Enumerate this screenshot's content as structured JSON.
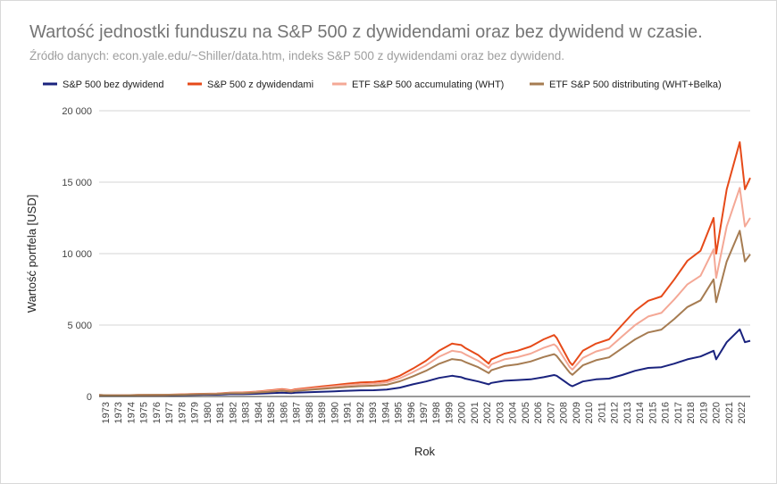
{
  "chart_data": {
    "type": "line",
    "title": "Wartość jednostki funduszu na S&P 500 z dywidendami oraz bez dywidend w czasie.",
    "subtitle": "Źródło danych: econ.yale.edu/~Shiller/data.htm, indeks S&P 500 z dywidendami oraz bez dywidend.",
    "xlabel": "Rok",
    "ylabel": "Wartość portfela [USD]",
    "ylim": [
      0,
      20000
    ],
    "yticks": [
      0,
      5000,
      10000,
      15000,
      20000
    ],
    "ytick_labels": [
      "0",
      "5 000",
      "10 000",
      "15 000",
      "20 000"
    ],
    "xlim": [
      1973.0,
      2022.8
    ],
    "x_tick_labels": [
      "1973",
      "1973",
      "1974",
      "1975",
      "1976",
      "1977",
      "1978",
      "1979",
      "1980",
      "1981",
      "1982",
      "1983",
      "1984",
      "1985",
      "1986",
      "1987",
      "1988",
      "1989",
      "1990",
      "1991",
      "1992",
      "1993",
      "1994",
      "1995",
      "1996",
      "1997",
      "1998",
      "1999",
      "2000",
      "2001",
      "2002",
      "2003",
      "2004",
      "2005",
      "2006",
      "2007",
      "2008",
      "2009",
      "2010",
      "2011",
      "2012",
      "2013",
      "2014",
      "2015",
      "2016",
      "2017",
      "2018",
      "2019",
      "2020",
      "2021",
      "2022"
    ],
    "grid": true,
    "legend_position": "top",
    "x": [
      1973,
      1974,
      1975,
      1976,
      1977,
      1978,
      1979,
      1980,
      1981,
      1982,
      1983,
      1984,
      1985,
      1986,
      1987,
      1987.7,
      1988,
      1989,
      1990,
      1991,
      1992,
      1993,
      1994,
      1995,
      1996,
      1997,
      1998,
      1999,
      2000,
      2000.7,
      2001,
      2002,
      2002.8,
      2003,
      2004,
      2005,
      2006,
      2007,
      2007.8,
      2008,
      2009,
      2009.2,
      2010,
      2011,
      2012,
      2013,
      2014,
      2015,
      2016,
      2017,
      2018,
      2019,
      2020,
      2020.2,
      2021,
      2022,
      2022.4,
      2022.8
    ],
    "series": [
      {
        "name": "S&P 500 bez dywidend",
        "color": "#1a237e",
        "values": [
          100,
          75,
          75,
          90,
          95,
          90,
          98,
          115,
          125,
          125,
          160,
          160,
          190,
          225,
          270,
          230,
          260,
          300,
          330,
          360,
          400,
          430,
          440,
          480,
          620,
          850,
          1050,
          1300,
          1450,
          1350,
          1250,
          1050,
          850,
          950,
          1100,
          1150,
          1200,
          1350,
          1500,
          1450,
          800,
          720,
          1050,
          1200,
          1250,
          1500,
          1800,
          2000,
          2050,
          2300,
          2600,
          2800,
          3200,
          2600,
          3800,
          4700,
          3800,
          3900
        ]
      },
      {
        "name": "S&P 500 z dywidendami",
        "color": "#e64a19",
        "values": [
          100,
          80,
          85,
          105,
          115,
          120,
          135,
          170,
          190,
          200,
          270,
          280,
          340,
          420,
          520,
          430,
          500,
          600,
          700,
          800,
          900,
          980,
          1020,
          1120,
          1450,
          1950,
          2500,
          3200,
          3700,
          3600,
          3400,
          2900,
          2300,
          2600,
          3000,
          3200,
          3500,
          4000,
          4300,
          4100,
          2400,
          2200,
          3200,
          3700,
          4000,
          5000,
          6000,
          6700,
          7000,
          8200,
          9500,
          10200,
          12500,
          10000,
          14500,
          17800,
          14500,
          15300
        ]
      },
      {
        "name": "ETF S&P 500 accumulating (WHT)",
        "color": "#f4a896",
        "values": [
          100,
          79,
          83,
          102,
          110,
          115,
          128,
          160,
          178,
          187,
          250,
          258,
          310,
          380,
          470,
          390,
          450,
          540,
          625,
          710,
          800,
          865,
          900,
          985,
          1275,
          1700,
          2180,
          2780,
          3200,
          3100,
          2950,
          2500,
          2000,
          2250,
          2600,
          2750,
          3000,
          3400,
          3650,
          3500,
          2050,
          1880,
          2700,
          3150,
          3400,
          4200,
          5000,
          5600,
          5850,
          6800,
          7850,
          8450,
          10300,
          8300,
          11900,
          14600,
          11900,
          12500
        ]
      },
      {
        "name": "ETF S&P 500 distributing (WHT+Belka)",
        "color": "#a67c52",
        "values": [
          100,
          78,
          80,
          98,
          104,
          108,
          118,
          145,
          160,
          168,
          222,
          228,
          272,
          330,
          405,
          335,
          385,
          460,
          530,
          600,
          675,
          725,
          755,
          820,
          1060,
          1410,
          1800,
          2290,
          2620,
          2540,
          2410,
          2050,
          1640,
          1840,
          2130,
          2250,
          2450,
          2760,
          2960,
          2840,
          1660,
          1520,
          2180,
          2540,
          2740,
          3370,
          4000,
          4480,
          4680,
          5430,
          6260,
          6730,
          8200,
          6600,
          9450,
          11600,
          9450,
          9950
        ]
      }
    ]
  }
}
